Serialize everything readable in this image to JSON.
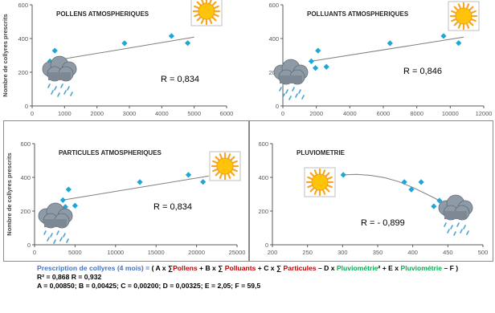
{
  "colors": {
    "marker": "#1fa6d8",
    "trend": "#7f7f7f",
    "grid": "#d9d9d9",
    "axis": "#595959",
    "label": "#595959",
    "formula_label": "#4472c4",
    "pollen_color": "#c00000",
    "pluvio_color": "#00b050"
  },
  "icons": {
    "sun": "sun-icon",
    "rain": "rain-cloud-icon"
  },
  "chart_data": [
    {
      "type": "scatter",
      "title": "POLLENS ATMOSPHERIQUES",
      "ylabel": "Nombre de collyres prescrits",
      "xlabel": "",
      "xlim": [
        0,
        6000
      ],
      "ylim": [
        0,
        600
      ],
      "xticks": [
        0,
        1000,
        2000,
        3000,
        4000,
        5000,
        6000
      ],
      "yticks": [
        0,
        200,
        400,
        600
      ],
      "ytick_labels": [
        "0",
        "200",
        "400",
        "600"
      ],
      "points": [
        [
          550,
          265
        ],
        [
          700,
          328
        ],
        [
          750,
          225
        ],
        [
          1050,
          230
        ],
        [
          2850,
          372
        ],
        [
          4300,
          415
        ],
        [
          4800,
          373
        ]
      ],
      "trendline": {
        "kind": "linear",
        "x": [
          550,
          5000
        ],
        "y": [
          265,
          408
        ]
      },
      "annotation": "R = 0,834",
      "sun_near": "high",
      "cloud_near": "low",
      "grid": false
    },
    {
      "type": "scatter",
      "title": "POLLUANTS ATMOSPHERIQUES",
      "ylabel": "",
      "xlabel": "",
      "xlim": [
        0,
        12000
      ],
      "ylim": [
        0,
        600
      ],
      "xticks": [
        0,
        2000,
        4000,
        6000,
        8000,
        10000,
        12000
      ],
      "yticks": [
        0,
        200,
        400,
        600
      ],
      "ytick_labels": [
        "0",
        "200",
        "400",
        "600"
      ],
      "points": [
        [
          1700,
          265
        ],
        [
          1950,
          225
        ],
        [
          2100,
          328
        ],
        [
          2600,
          232
        ],
        [
          6400,
          372
        ],
        [
          9600,
          415
        ],
        [
          10500,
          373
        ]
      ],
      "trendline": {
        "kind": "linear",
        "x": [
          1700,
          10800
        ],
        "y": [
          265,
          408
        ]
      },
      "annotation": "R = 0,846",
      "sun_near": "high",
      "cloud_near": "low",
      "grid": false
    },
    {
      "type": "scatter",
      "title": "PARTICULES ATMOSPHERIQUES",
      "ylabel": "Nombre de collyres prescrits",
      "xlabel": "",
      "xlim": [
        0,
        25000
      ],
      "ylim": [
        0,
        600
      ],
      "xticks": [
        0,
        5000,
        10000,
        15000,
        20000,
        25000
      ],
      "xtick_labels": [
        "0",
        "5000",
        "10000",
        "15000",
        "20000",
        "25000"
      ],
      "yticks": [
        0,
        200,
        400,
        600
      ],
      "ytick_labels": [
        "0",
        "200",
        "400",
        "600"
      ],
      "points": [
        [
          3500,
          265
        ],
        [
          3800,
          225
        ],
        [
          4200,
          328
        ],
        [
          5000,
          232
        ],
        [
          13000,
          372
        ],
        [
          19000,
          415
        ],
        [
          20800,
          373
        ]
      ],
      "trendline": {
        "kind": "linear",
        "x": [
          3500,
          21500
        ],
        "y": [
          265,
          408
        ]
      },
      "annotation": "R = 0,834",
      "sun_near": "high",
      "cloud_near": "low",
      "grid": false
    },
    {
      "type": "scatter",
      "title": "PLUVIOMETRIE",
      "ylabel": "",
      "xlabel": "",
      "xlim": [
        200,
        500
      ],
      "ylim": [
        0,
        600
      ],
      "xticks": [
        200,
        250,
        300,
        350,
        400,
        450,
        500
      ],
      "xtick_labels": [
        "200",
        "250",
        "300",
        "350",
        "400",
        "450",
        "500"
      ],
      "yticks": [
        0,
        200,
        400,
        600
      ],
      "ytick_labels": [
        "0",
        "200",
        "400",
        "600"
      ],
      "points": [
        [
          301,
          415
        ],
        [
          388,
          372
        ],
        [
          398,
          328
        ],
        [
          412,
          372
        ],
        [
          430,
          228
        ],
        [
          438,
          262
        ],
        [
          450,
          232
        ]
      ],
      "trendline": {
        "kind": "poly2",
        "x": [
          301,
          320,
          340,
          360,
          380,
          400,
          420,
          440,
          452
        ],
        "y": [
          415,
          418,
          412,
          398,
          375,
          340,
          300,
          258,
          230
        ]
      },
      "annotation": "R = - 0,899",
      "sun_near": "left",
      "cloud_near": "right",
      "grid": false
    }
  ],
  "formula": {
    "prefix": "Prescription de collyres (4 mois) = ",
    "open": "( A x ∑",
    "pollens": "Pollens",
    "p1": " + B x ∑ ",
    "polluants": "Polluants",
    "p2": " + C x ∑ ",
    "particules": "Particules",
    "p3": " – D x ",
    "pluvio1": "Pluviométrie",
    "p4": "² + E x ",
    "pluvio2": "Pluviométrie",
    "p5": " – F )",
    "line2": "R² = 0,868  R = 0,932",
    "line3": "A = 0,00850; B = 0,00425; C = 0,00200; D = 0,00325; E = 2,05; F = 59,5"
  }
}
